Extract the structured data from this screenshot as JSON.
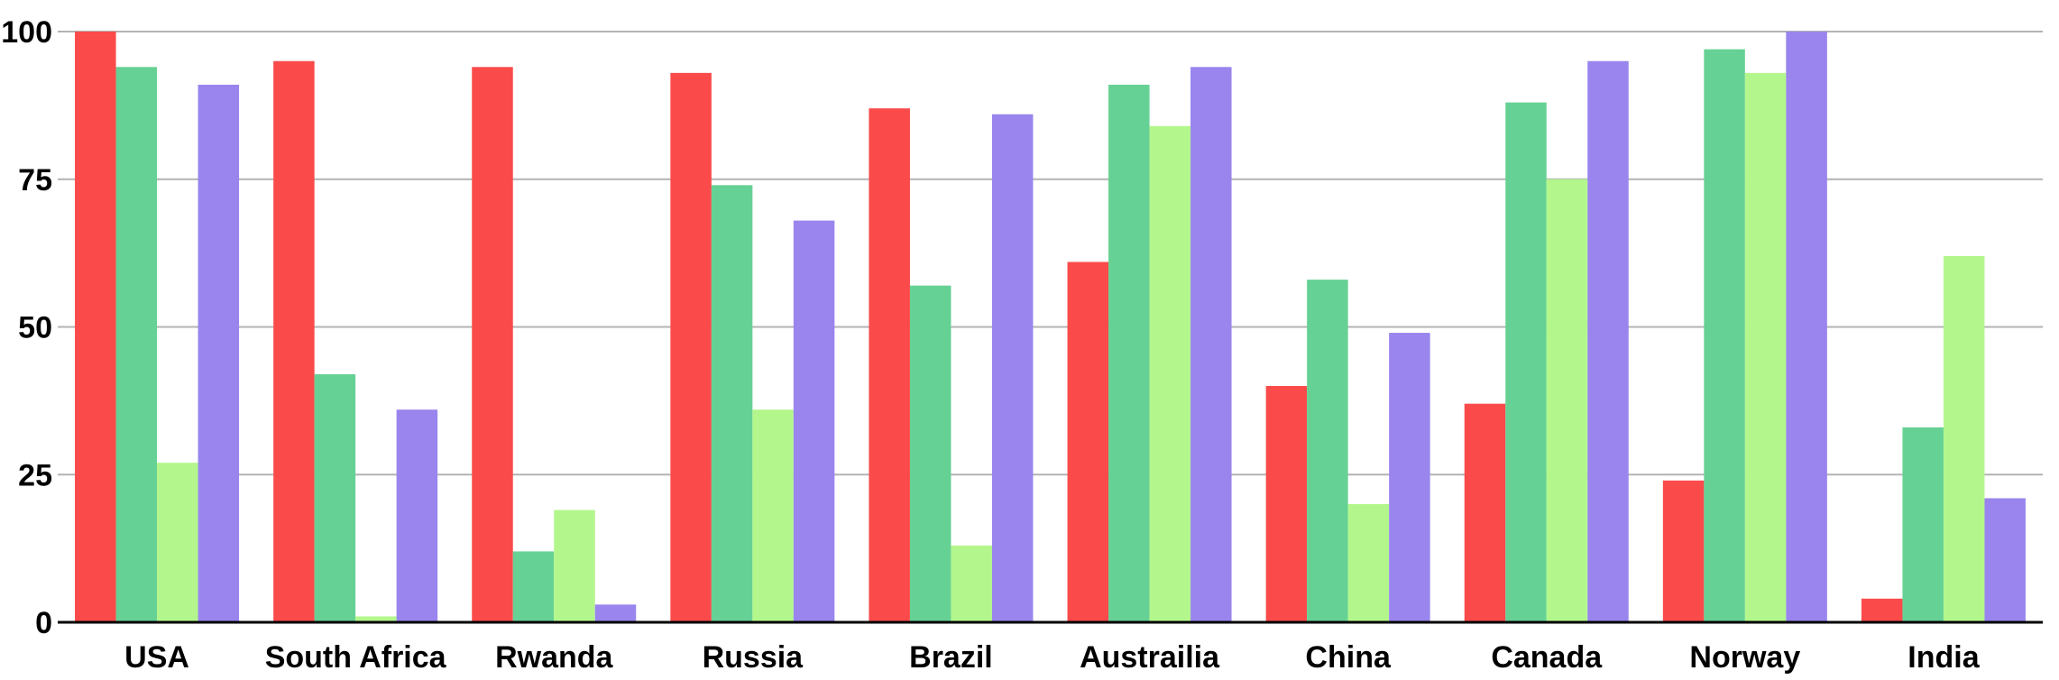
{
  "chart_data": {
    "type": "bar",
    "categories": [
      "USA",
      "South Africa",
      "Rwanda",
      "Russia",
      "Brazil",
      "Austrailia",
      "China",
      "Canada",
      "Norway",
      "India"
    ],
    "series": [
      {
        "color": "#fa4a4a",
        "values": [
          100,
          95,
          94,
          93,
          87,
          61,
          40,
          37,
          24,
          4
        ]
      },
      {
        "color": "#66d194",
        "values": [
          94,
          42,
          12,
          74,
          57,
          91,
          58,
          88,
          97,
          33
        ]
      },
      {
        "color": "#b3f78c",
        "values": [
          27,
          1,
          19,
          36,
          13,
          84,
          20,
          75,
          93,
          62
        ]
      },
      {
        "color": "#9985ed",
        "values": [
          91,
          36,
          3,
          68,
          86,
          94,
          49,
          95,
          100,
          21
        ]
      }
    ],
    "yticks": [
      "0",
      "25",
      "50",
      "75",
      "100"
    ],
    "ylim": [
      0,
      100
    ],
    "grid": true,
    "legend": "none"
  }
}
